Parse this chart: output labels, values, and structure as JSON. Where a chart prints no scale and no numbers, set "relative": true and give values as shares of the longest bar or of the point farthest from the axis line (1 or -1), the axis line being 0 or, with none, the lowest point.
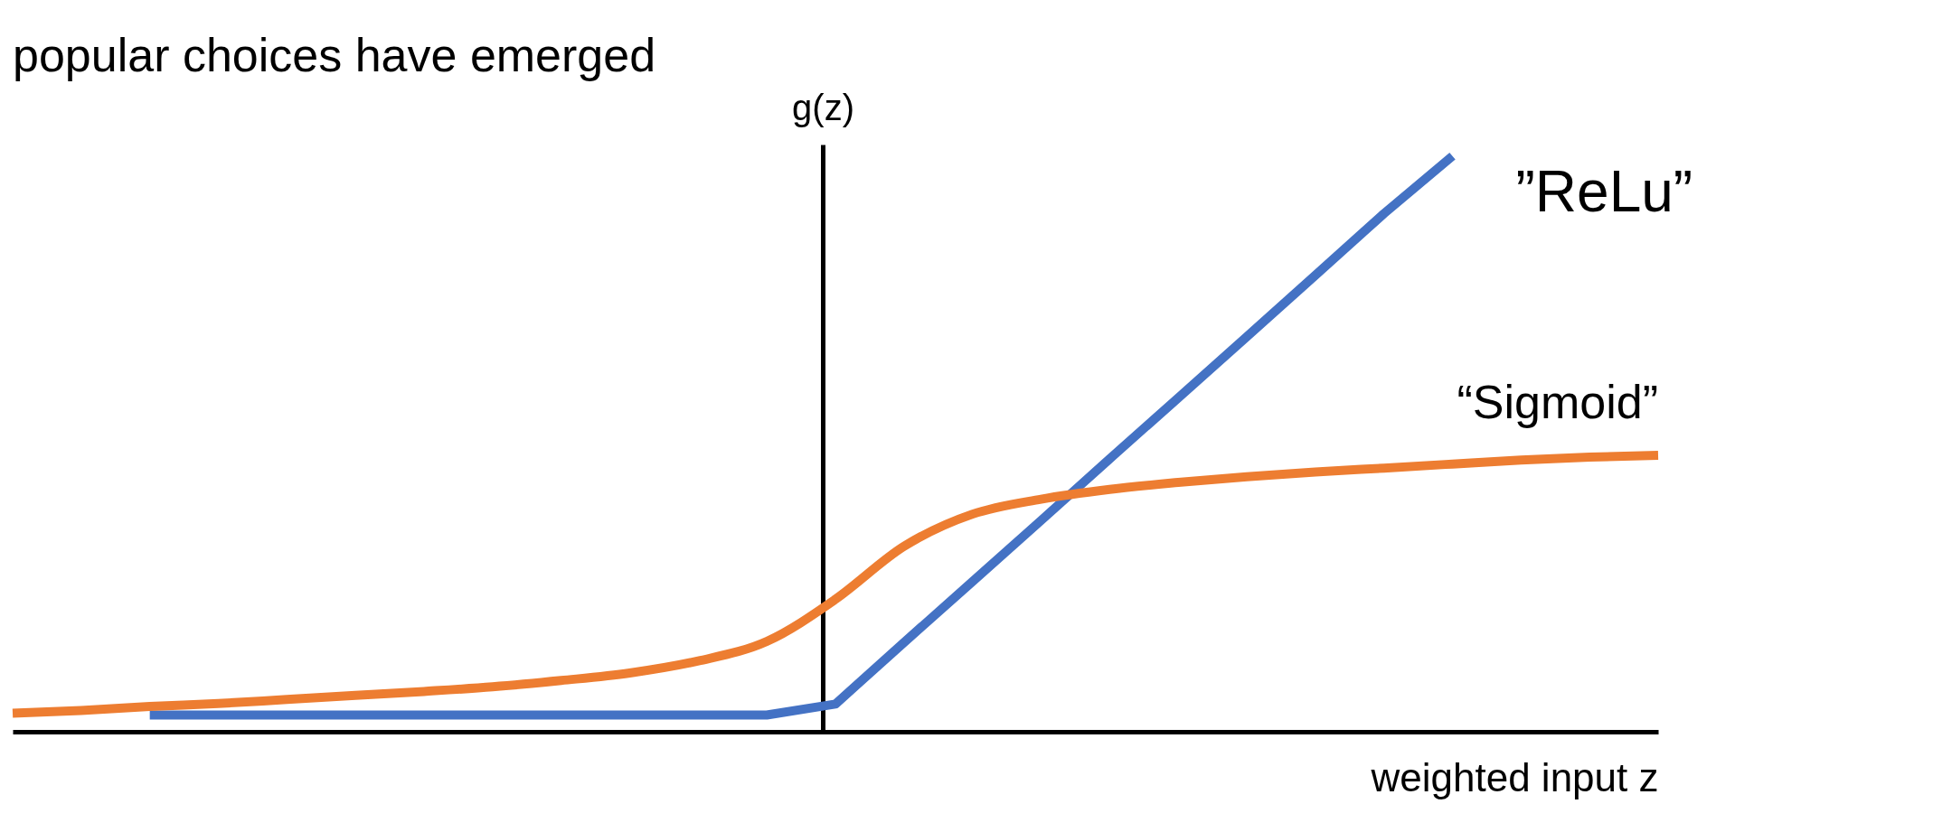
{
  "chart_data": {
    "type": "line",
    "relative": true,
    "title": "popular choices have emerged",
    "xlabel": "weighted input z",
    "ylabel": "g(z)",
    "categories": [
      null,
      null,
      null,
      null,
      null,
      null,
      null,
      null,
      null,
      null,
      null,
      null,
      null,
      null,
      null,
      null,
      null,
      null,
      null,
      null,
      null,
      null,
      null,
      null,
      null
    ],
    "series": [
      {
        "name": "”ReLu”",
        "color": "#4472c4",
        "values": [
          null,
          null,
          0.029,
          0.029,
          0.029,
          0.029,
          0.029,
          0.029,
          0.029,
          0.029,
          0.029,
          0.029,
          0.048,
          0.155,
          0.261,
          0.367,
          0.474,
          0.58,
          0.686,
          0.793,
          0.9,
          1.0,
          null,
          null,
          null
        ]
      },
      {
        "name": "“Sigmoid”",
        "color": "#ed7d31",
        "values": [
          0.032,
          0.037,
          0.044,
          0.049,
          0.056,
          0.063,
          0.07,
          0.078,
          0.089,
          0.102,
          0.123,
          0.157,
          0.23,
          0.322,
          0.378,
          0.404,
          0.421,
          0.433,
          0.443,
          0.451,
          0.458,
          0.465,
          0.472,
          0.477,
          0.48
        ]
      }
    ]
  }
}
